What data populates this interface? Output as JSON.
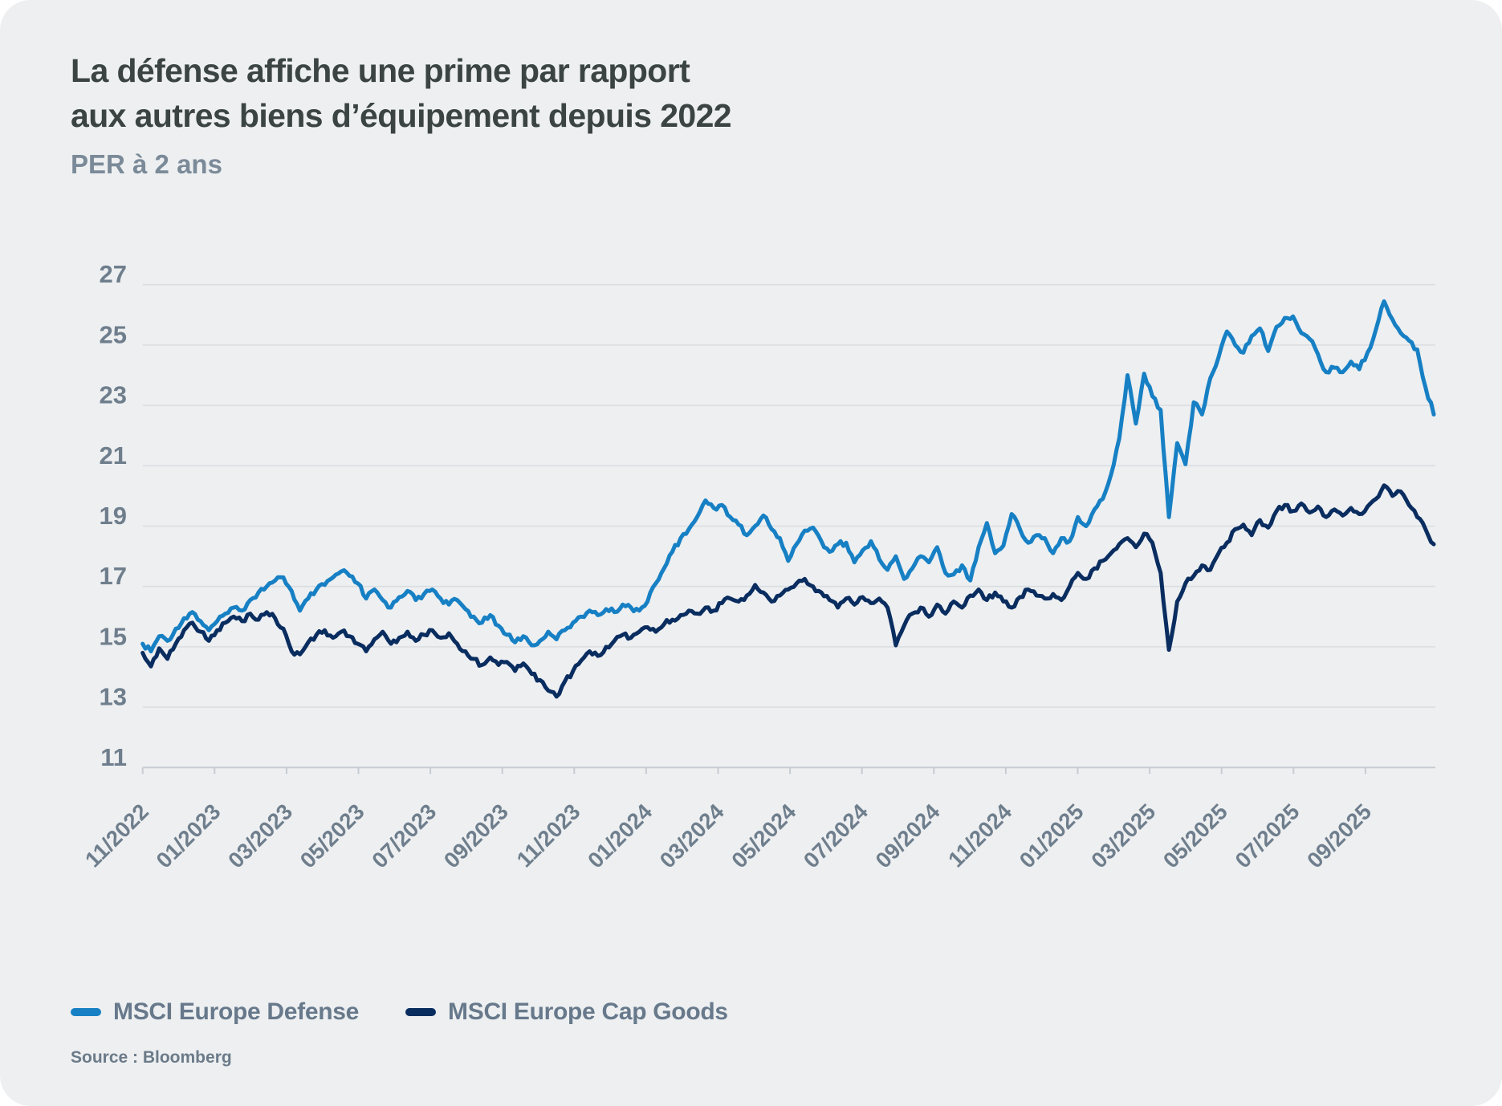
{
  "card": {
    "title_line1": "La défense affiche une prime par rapport",
    "title_line2": "aux autres biens d’équipement depuis 2022",
    "subtitle": "PER à 2 ans",
    "source": "Source : Bloomberg"
  },
  "legend": [
    {
      "label": "MSCI Europe Defense",
      "color": "#1780c4"
    },
    {
      "label": "MSCI Europe Cap Goods",
      "color": "#0a2d60"
    }
  ],
  "colors": {
    "background": "#edeff1",
    "title": "#3b4442",
    "subtitle": "#7b8a98",
    "axis_labels": "#6f7e8c",
    "gridline": "#dbdee1",
    "axis_line": "#c7ccd2",
    "defense": "#1780c4",
    "cap_goods": "#0a2d60"
  },
  "chart_data": {
    "type": "line",
    "title": "La défense affiche une prime par rapport aux autres biens d’équipement depuis 2022",
    "subtitle": "PER à 2 ans",
    "xlabel": "",
    "ylabel": "PER à 2 ans",
    "ylim": [
      11,
      27
    ],
    "y_ticks": [
      11,
      13,
      15,
      17,
      19,
      21,
      23,
      25,
      27
    ],
    "grid": "horizontal",
    "legend_position": "bottom",
    "x_note": "weekly samples, 11/2022 to late 10/2025; tick labels every 2 months",
    "x_tick_labels": [
      "11/2022",
      "01/2023",
      "03/2023",
      "05/2023",
      "07/2023",
      "09/2023",
      "11/2023",
      "01/2024",
      "03/2024",
      "05/2024",
      "07/2024",
      "09/2024",
      "11/2024",
      "01/2025",
      "03/2025",
      "05/2025",
      "07/2025",
      "09/2025"
    ],
    "series": [
      {
        "name": "MSCI Europe Defense",
        "color": "#1780c4",
        "values": [
          15.1,
          14.85,
          15.35,
          15.2,
          15.6,
          15.95,
          16.15,
          15.85,
          15.55,
          15.85,
          16.1,
          16.3,
          16.2,
          16.55,
          16.8,
          17.0,
          17.2,
          17.3,
          16.85,
          16.2,
          16.6,
          16.9,
          17.05,
          17.3,
          17.5,
          17.35,
          17.1,
          16.6,
          16.9,
          16.55,
          16.3,
          16.65,
          16.85,
          16.55,
          16.75,
          16.9,
          16.6,
          16.4,
          16.55,
          16.25,
          16.0,
          15.8,
          16.05,
          15.7,
          15.4,
          15.15,
          15.35,
          15.05,
          15.2,
          15.5,
          15.25,
          15.55,
          15.8,
          16.0,
          16.2,
          16.05,
          16.25,
          16.15,
          16.4,
          16.3,
          16.2,
          16.5,
          17.1,
          17.6,
          18.15,
          18.6,
          18.9,
          19.3,
          19.85,
          19.6,
          19.7,
          19.3,
          19.05,
          18.7,
          19.0,
          19.35,
          18.9,
          18.6,
          17.85,
          18.4,
          18.85,
          18.95,
          18.5,
          18.15,
          18.4,
          18.45,
          17.8,
          18.2,
          18.5,
          17.9,
          17.55,
          18.0,
          17.25,
          17.6,
          18.0,
          17.8,
          18.3,
          17.45,
          17.4,
          17.7,
          17.2,
          18.3,
          19.1,
          18.1,
          18.35,
          19.4,
          18.9,
          18.45,
          18.7,
          18.6,
          18.1,
          18.6,
          18.5,
          19.3,
          19.0,
          19.55,
          19.9,
          20.7,
          21.9,
          24.0,
          22.4,
          24.05,
          23.3,
          22.85,
          19.3,
          21.75,
          21.05,
          23.1,
          22.7,
          23.9,
          24.6,
          25.45,
          25.0,
          24.75,
          25.3,
          25.55,
          24.8,
          25.6,
          25.9,
          25.95,
          25.4,
          25.2,
          24.7,
          24.1,
          24.25,
          24.1,
          24.45,
          24.2,
          24.75,
          25.5,
          26.45,
          25.85,
          25.4,
          25.15,
          24.85,
          23.6,
          22.7
        ]
      },
      {
        "name": "MSCI Europe Cap Goods",
        "color": "#0a2d60",
        "values": [
          14.8,
          14.35,
          14.95,
          14.6,
          15.1,
          15.55,
          15.8,
          15.5,
          15.2,
          15.55,
          15.8,
          16.0,
          15.85,
          16.1,
          15.9,
          16.15,
          15.95,
          15.6,
          14.85,
          14.75,
          15.15,
          15.4,
          15.55,
          15.3,
          15.5,
          15.35,
          15.1,
          14.85,
          15.25,
          15.5,
          15.1,
          15.3,
          15.5,
          15.2,
          15.4,
          15.55,
          15.3,
          15.45,
          15.1,
          14.85,
          14.6,
          14.4,
          14.65,
          14.4,
          14.5,
          14.2,
          14.45,
          14.1,
          13.9,
          13.55,
          13.35,
          13.85,
          14.2,
          14.55,
          14.85,
          14.7,
          15.0,
          15.2,
          15.4,
          15.3,
          15.5,
          15.65,
          15.5,
          15.75,
          15.9,
          16.05,
          16.2,
          16.1,
          16.3,
          16.2,
          16.45,
          16.6,
          16.5,
          16.7,
          17.05,
          16.8,
          16.5,
          16.7,
          16.9,
          17.1,
          17.25,
          17.0,
          16.8,
          16.55,
          16.3,
          16.6,
          16.4,
          16.65,
          16.45,
          16.6,
          16.3,
          15.05,
          15.7,
          16.1,
          16.3,
          16.0,
          16.4,
          16.1,
          16.5,
          16.3,
          16.7,
          16.9,
          16.55,
          16.8,
          16.5,
          16.3,
          16.65,
          16.9,
          16.7,
          16.6,
          16.75,
          16.55,
          17.0,
          17.45,
          17.25,
          17.6,
          17.85,
          18.1,
          18.4,
          18.6,
          18.3,
          18.75,
          18.45,
          17.45,
          14.9,
          16.5,
          17.1,
          17.35,
          17.7,
          17.55,
          18.1,
          18.45,
          18.9,
          19.05,
          18.7,
          19.2,
          18.95,
          19.5,
          19.7,
          19.5,
          19.75,
          19.45,
          19.65,
          19.3,
          19.55,
          19.35,
          19.6,
          19.4,
          19.65,
          19.9,
          20.35,
          20.0,
          20.15,
          19.7,
          19.3,
          18.9,
          18.4
        ]
      }
    ]
  }
}
